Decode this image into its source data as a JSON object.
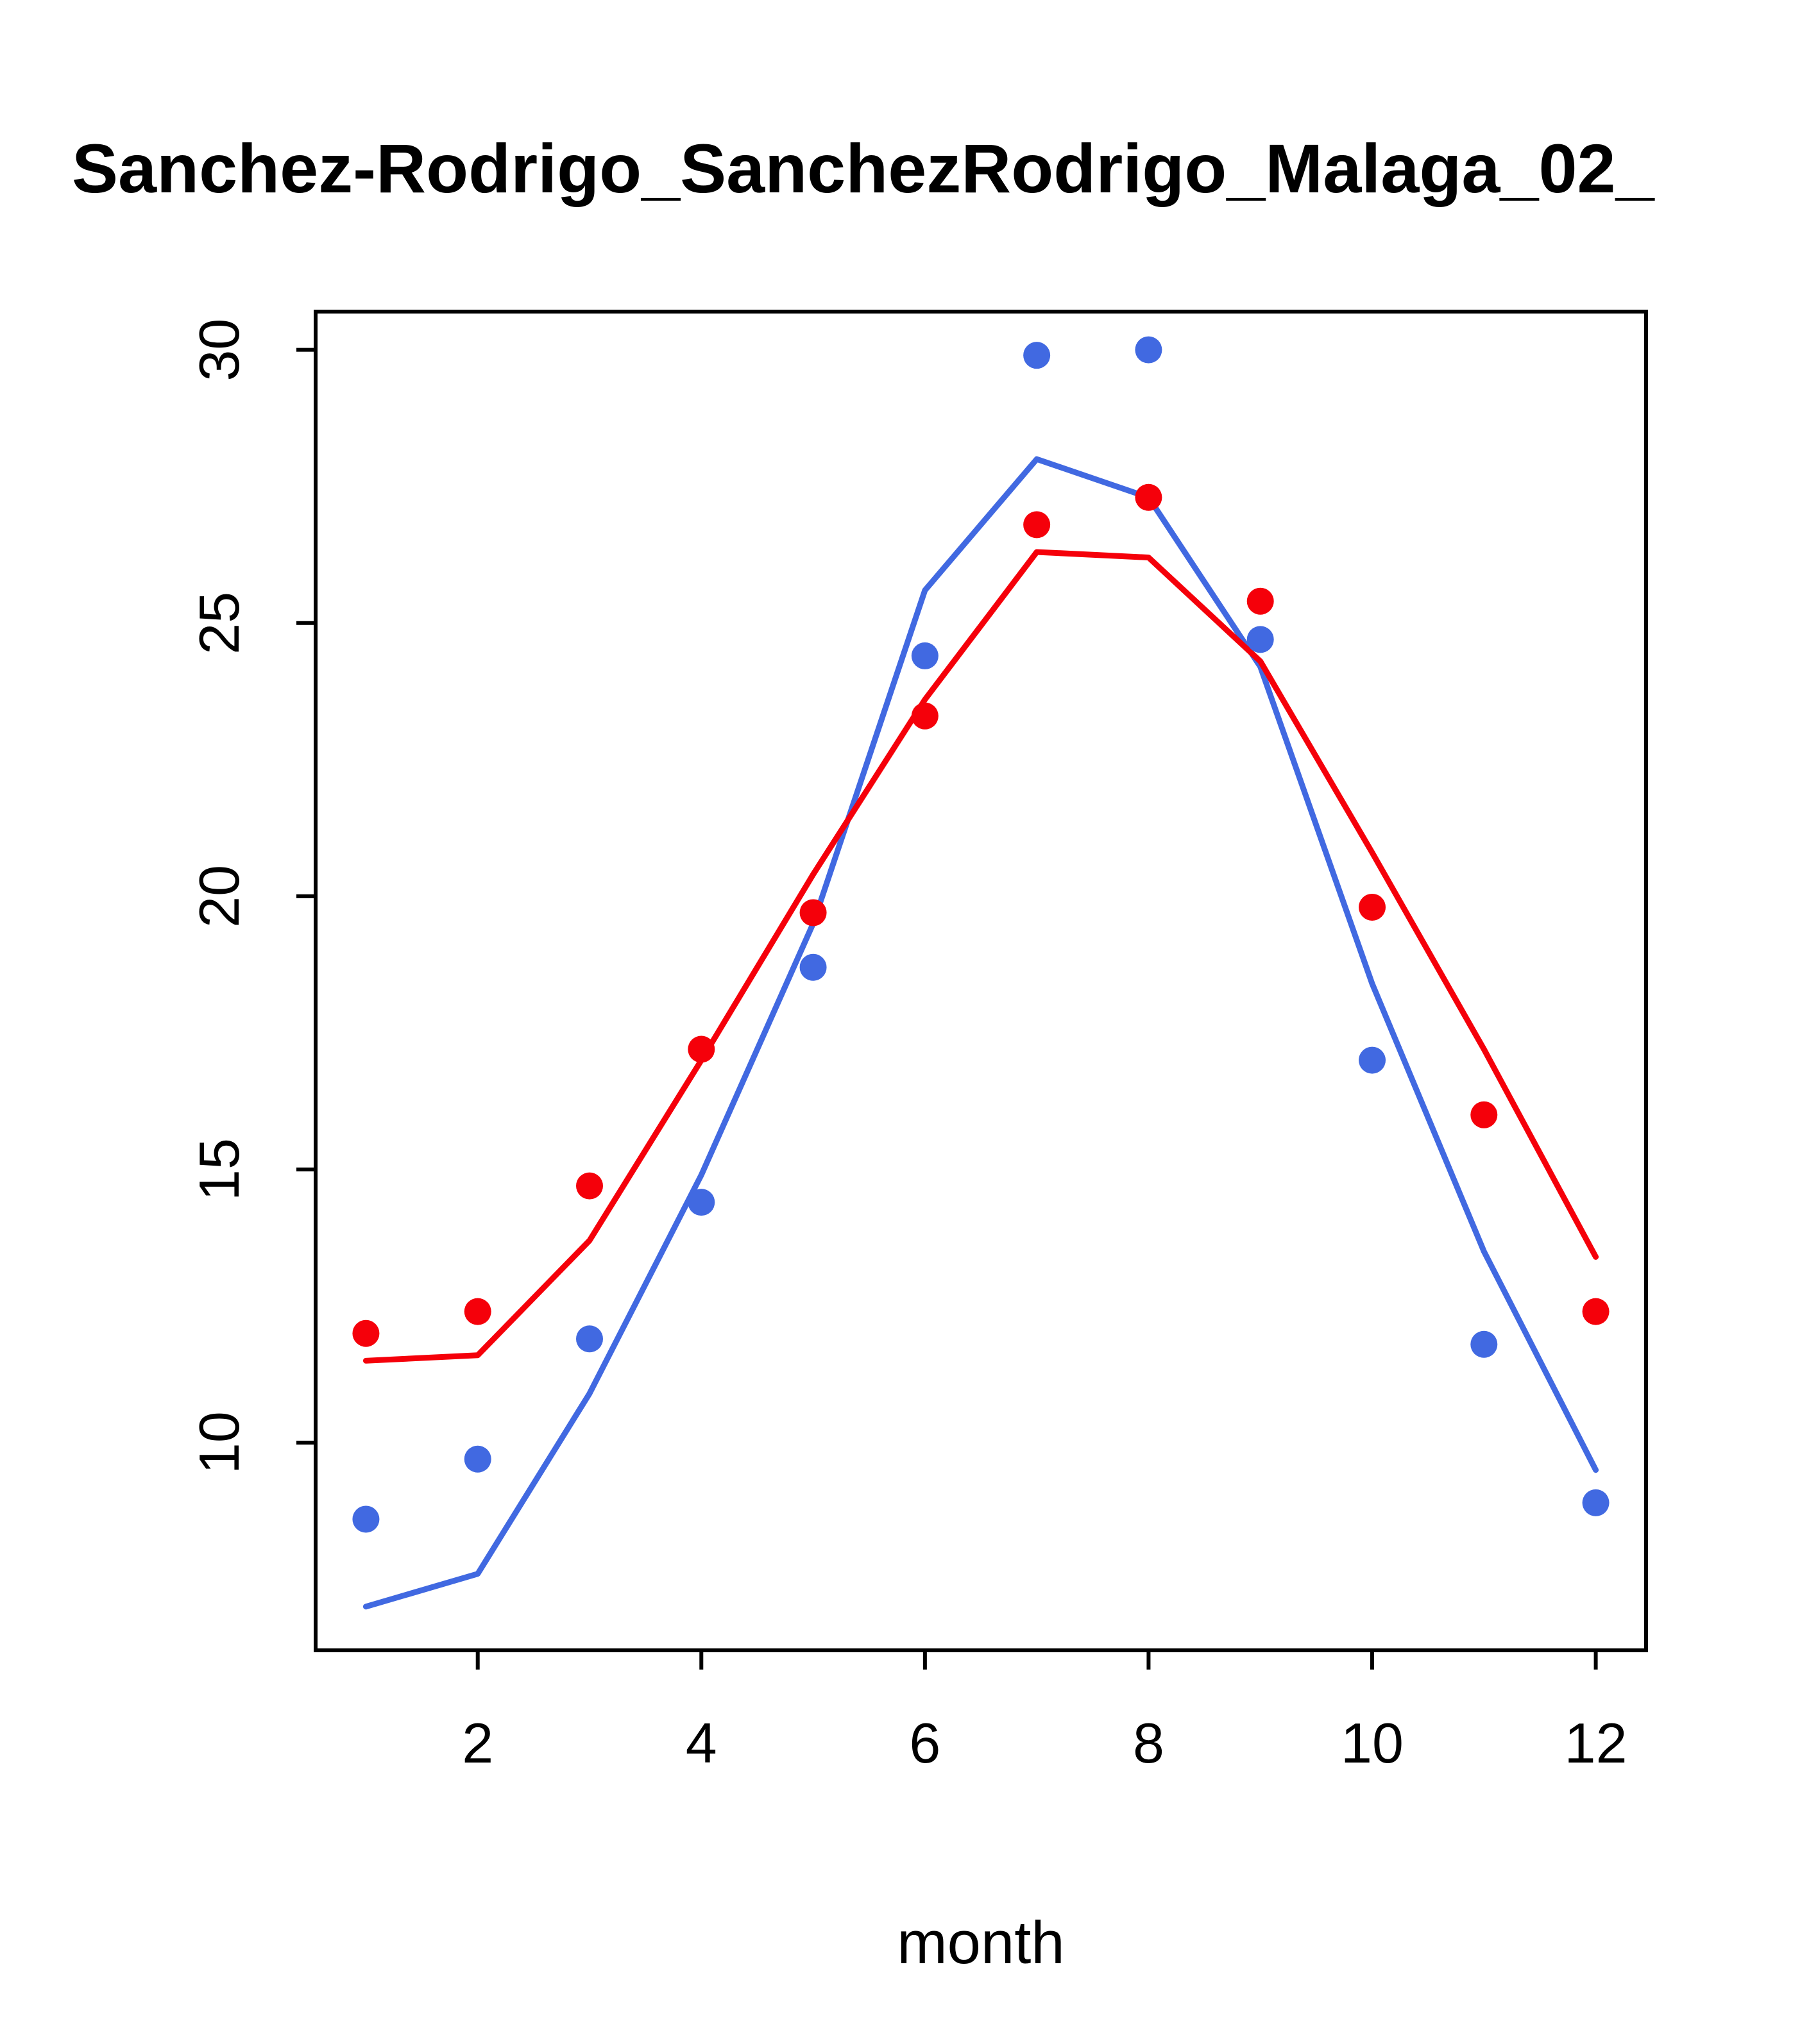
{
  "colors": {
    "axis": "#000000",
    "background": "#FFFFFF",
    "series_red": "#F5000A",
    "series_blue": "#4169E1"
  },
  "chart_data": {
    "type": "line",
    "title": "Sanchez-Rodrigo_SanchezRodrigo_Malaga_02_",
    "xlabel": "month",
    "ylabel": "",
    "x": [
      1,
      2,
      3,
      4,
      5,
      6,
      7,
      8,
      9,
      10,
      11,
      12
    ],
    "xlim": [
      0.55,
      12.45
    ],
    "ylim": [
      6.2,
      30.7
    ],
    "x_ticks": [
      2,
      4,
      6,
      8,
      10,
      12
    ],
    "y_ticks": [
      10,
      15,
      20,
      25,
      30
    ],
    "grid": false,
    "legend": null,
    "series": [
      {
        "name": "blue-line",
        "style": "line",
        "color": "#4169E1",
        "values": [
          7.0,
          7.6,
          10.9,
          14.9,
          19.5,
          25.6,
          28.0,
          27.3,
          24.2,
          18.4,
          13.5,
          9.5
        ]
      },
      {
        "name": "red-line",
        "style": "line",
        "color": "#F5000A",
        "values": [
          11.5,
          11.6,
          13.7,
          17.0,
          20.4,
          23.6,
          26.3,
          26.2,
          24.3,
          20.8,
          17.2,
          13.4
        ]
      },
      {
        "name": "blue-points",
        "style": "points",
        "color": "#4169E1",
        "values": [
          8.6,
          9.7,
          11.9,
          14.4,
          18.7,
          24.4,
          29.9,
          30.0,
          24.7,
          17.0,
          11.8,
          8.9
        ]
      },
      {
        "name": "red-points",
        "style": "points",
        "color": "#F5000A",
        "values": [
          12.0,
          12.4,
          14.7,
          17.2,
          19.7,
          23.3,
          26.8,
          27.3,
          25.4,
          19.8,
          16.0,
          12.4
        ]
      }
    ]
  }
}
